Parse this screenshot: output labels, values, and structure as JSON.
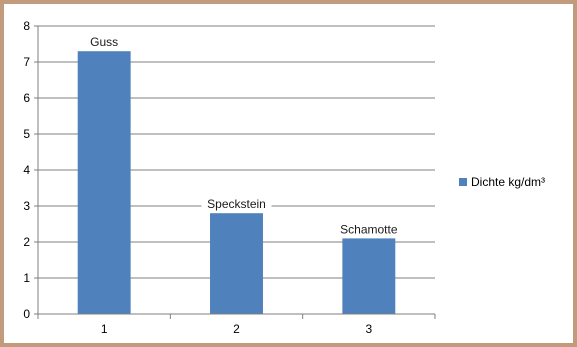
{
  "chart_data": {
    "type": "bar",
    "categories": [
      "1",
      "2",
      "3"
    ],
    "series": [
      {
        "name": "Dichte kg/dm³",
        "values": [
          7.3,
          2.8,
          2.1
        ],
        "data_labels": [
          "Guss",
          "Speckstein",
          "Schamotte"
        ]
      }
    ],
    "y_ticks": [
      "0",
      "1",
      "2",
      "3",
      "4",
      "5",
      "6",
      "7",
      "8"
    ],
    "ylim": [
      0,
      8
    ],
    "grid": "horizontal",
    "legend_position": "right",
    "colors": {
      "bar": "#4f81bd",
      "background": "#c19b7c",
      "plot": "#ffffff",
      "grid": "#7f7f7f"
    }
  }
}
